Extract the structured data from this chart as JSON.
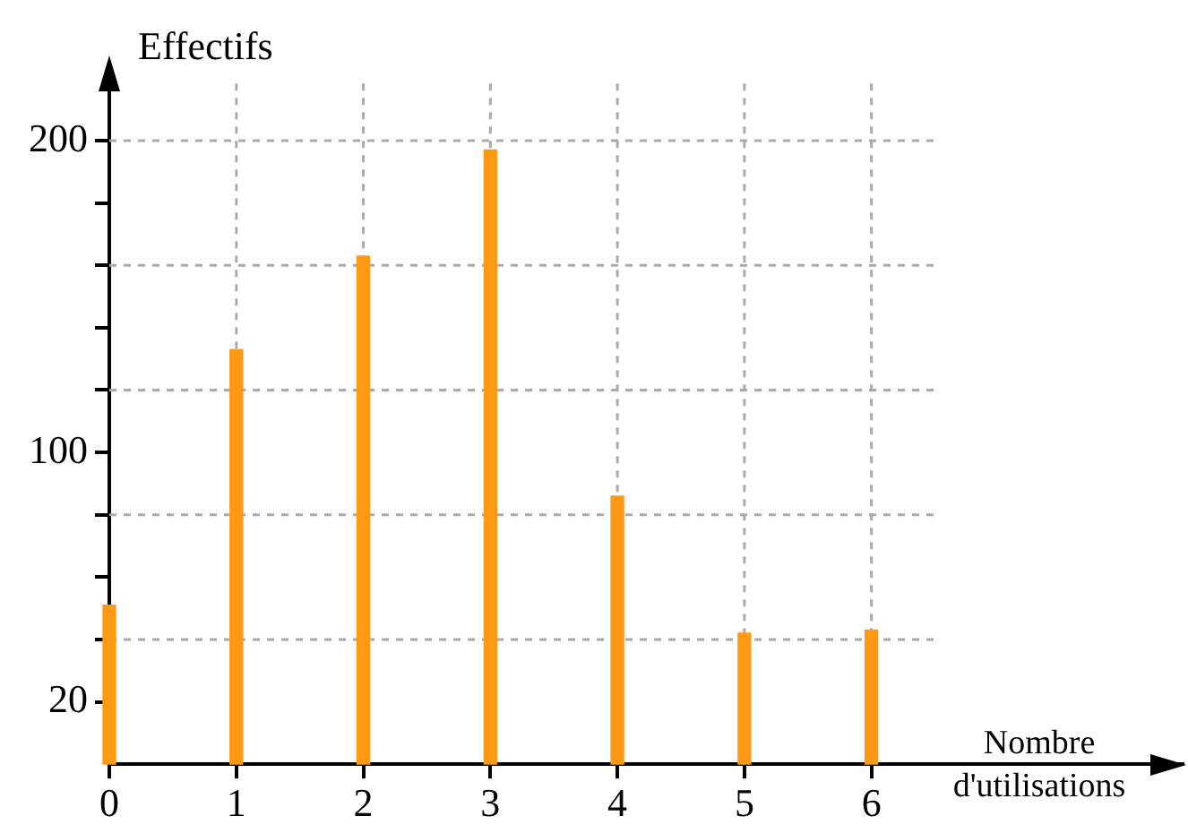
{
  "chart_data": {
    "type": "bar",
    "ylabel": "Effectifs",
    "xlabel": "Nombre d'utilisations",
    "x": [
      0,
      1,
      2,
      3,
      4,
      5,
      6
    ],
    "values": [
      51,
      133,
      163,
      197,
      86,
      42,
      43
    ],
    "color": "#ff9914",
    "xlim": [
      0,
      8.45
    ],
    "xticks": [
      0,
      1,
      2,
      3,
      4,
      5,
      6
    ],
    "ylim": [
      0,
      225
    ],
    "yticks": [
      {
        "value": 20,
        "label": "20"
      },
      {
        "value": 40,
        "label": null
      },
      {
        "value": 60,
        "label": null
      },
      {
        "value": 80,
        "label": null
      },
      {
        "value": 100,
        "label": "100"
      },
      {
        "value": 120,
        "label": null
      },
      {
        "value": 140,
        "label": null
      },
      {
        "value": 160,
        "label": null
      },
      {
        "value": 180,
        "label": null
      },
      {
        "value": 200,
        "label": "200"
      }
    ],
    "grid": true,
    "legend": false
  }
}
